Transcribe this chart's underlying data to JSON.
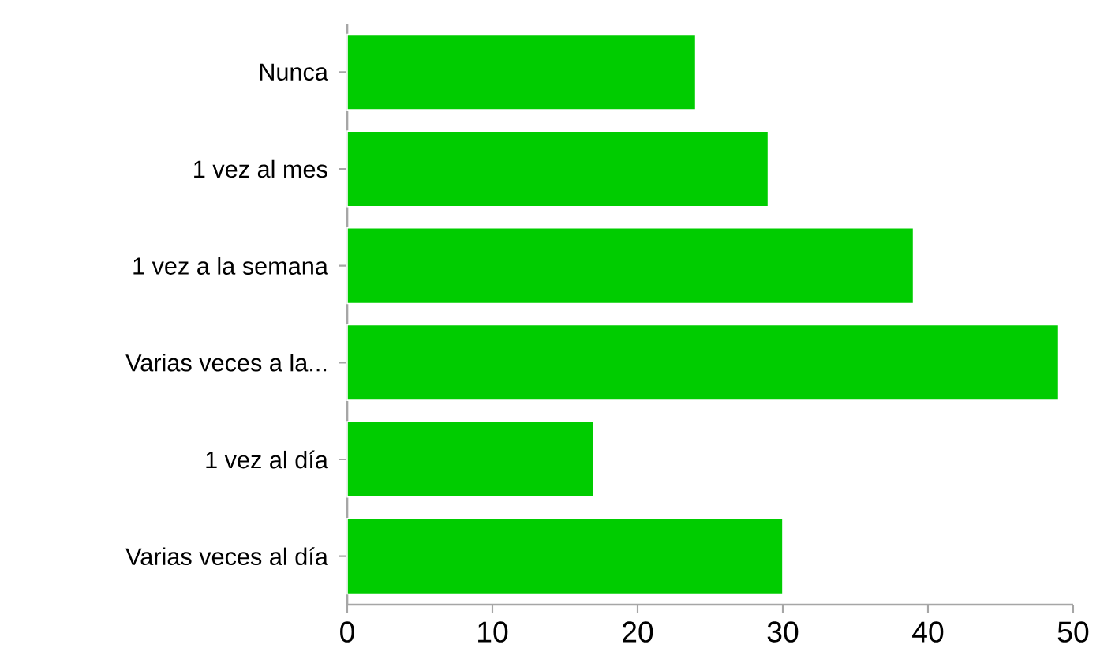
{
  "chart_data": {
    "type": "bar",
    "orientation": "horizontal",
    "categories": [
      "Nunca",
      "1 vez al mes",
      "1 vez a la semana",
      "Varias veces a la...",
      "1 vez al día",
      "Varias veces al día"
    ],
    "values": [
      24,
      29,
      39,
      49,
      17,
      30
    ],
    "color": "#00cc00",
    "xlim": [
      0,
      50
    ],
    "xticks": [
      0,
      10,
      20,
      30,
      40,
      50
    ],
    "grid": false
  }
}
